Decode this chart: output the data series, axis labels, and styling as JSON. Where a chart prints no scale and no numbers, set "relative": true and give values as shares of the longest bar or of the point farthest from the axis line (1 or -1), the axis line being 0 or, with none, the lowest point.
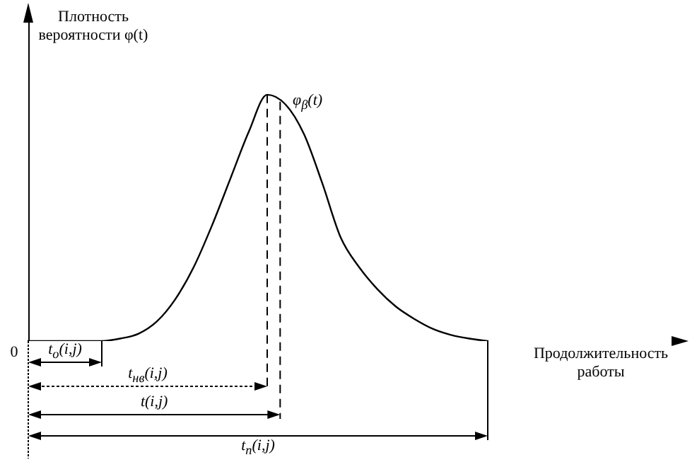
{
  "chart_data": {
    "type": "line",
    "relative": true,
    "ylabel": "Плотность вероятности φ(t)",
    "xlabel": "Продолжительность работы",
    "categories": [
      null,
      null,
      null,
      null,
      null,
      null,
      null,
      null,
      null,
      null,
      null,
      null,
      null,
      null,
      null,
      null,
      null,
      null,
      null,
      null,
      null,
      null,
      null,
      null,
      null,
      null,
      null,
      null,
      null,
      null,
      null,
      null,
      null,
      null,
      null,
      null
    ],
    "series": [
      {
        "name": "φ$_{β}$(t)",
        "color": "#000000",
        "values": [
          0,
          0,
          0,
          0,
          0,
          0.01,
          0.03,
          0.08,
          0.17,
          0.3,
          0.47,
          0.66,
          0.85,
          1,
          0.96,
          0.84,
          0.64,
          0.42,
          0.3,
          0.21,
          0.14,
          0.09,
          0.05,
          0.025,
          0.01,
          0,
          null,
          null,
          null,
          null,
          null,
          null,
          null,
          null,
          null,
          null
        ]
      }
    ],
    "annotations": [
      "0",
      "t$_{о}$(i,j)",
      "t$_{нв}$(i,j)",
      "t(i,j)",
      "t$_{п}$(i,j)"
    ]
  }
}
